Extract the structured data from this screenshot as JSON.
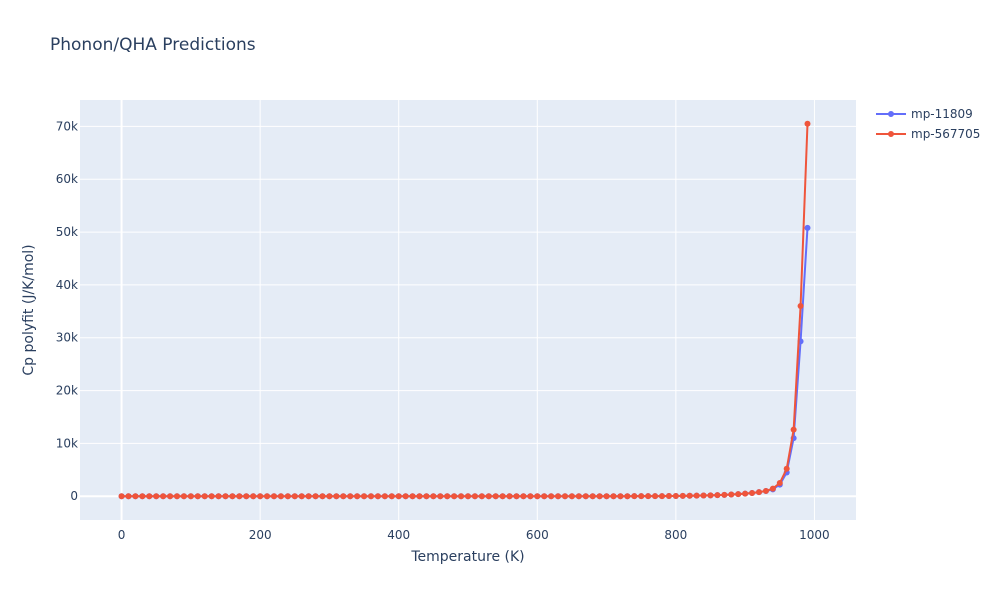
{
  "chart_data": {
    "type": "line",
    "title": "Phonon/QHA Predictions",
    "xlabel": "Temperature (K)",
    "ylabel": "Cp polyfit (J/K/mol)",
    "xlim": [
      -60,
      1060
    ],
    "ylim": [
      -4500,
      75000
    ],
    "x_ticks": [
      0,
      200,
      400,
      600,
      800,
      1000
    ],
    "x_tick_labels": [
      "0",
      "200",
      "400",
      "600",
      "800",
      "1000"
    ],
    "y_ticks": [
      0,
      10000,
      20000,
      30000,
      40000,
      50000,
      60000,
      70000
    ],
    "y_tick_labels": [
      "0",
      "10k",
      "20k",
      "30k",
      "40k",
      "50k",
      "60k",
      "70k"
    ],
    "grid": true,
    "legend": "right",
    "x": [
      0,
      10,
      20,
      30,
      40,
      50,
      60,
      70,
      80,
      90,
      100,
      110,
      120,
      130,
      140,
      150,
      160,
      170,
      180,
      190,
      200,
      210,
      220,
      230,
      240,
      250,
      260,
      270,
      280,
      290,
      300,
      310,
      320,
      330,
      340,
      350,
      360,
      370,
      380,
      390,
      400,
      410,
      420,
      430,
      440,
      450,
      460,
      470,
      480,
      490,
      500,
      510,
      520,
      530,
      540,
      550,
      560,
      570,
      580,
      590,
      600,
      610,
      620,
      630,
      640,
      650,
      660,
      670,
      680,
      690,
      700,
      710,
      720,
      730,
      740,
      750,
      760,
      770,
      780,
      790,
      800,
      810,
      820,
      830,
      840,
      850,
      860,
      870,
      880,
      890,
      900,
      910,
      920,
      930,
      940,
      950,
      960,
      970,
      980,
      990
    ],
    "series": [
      {
        "name": "mp-11809",
        "color": "#636efa",
        "values": [
          0,
          0,
          0,
          0,
          0,
          0,
          0,
          0,
          0,
          0,
          0,
          0,
          0,
          0,
          0,
          0,
          0,
          0,
          0,
          0,
          0,
          0,
          0,
          0,
          0,
          0,
          0,
          0,
          0,
          0,
          0,
          0,
          0,
          0,
          0,
          0,
          0,
          0,
          0,
          0,
          0,
          0,
          0,
          0,
          0,
          0,
          0,
          0,
          0,
          0,
          0,
          0,
          0,
          0,
          0,
          0,
          0,
          0,
          0,
          0,
          0,
          0,
          0,
          0,
          0,
          0,
          0,
          0,
          0,
          0,
          0,
          0,
          0,
          0,
          10,
          10,
          20,
          20,
          30,
          40,
          50,
          70,
          90,
          110,
          140,
          170,
          210,
          260,
          320,
          400,
          500,
          620,
          780,
          980,
          1300,
          2200,
          4500,
          11000,
          29300,
          50800
        ]
      },
      {
        "name": "mp-567705",
        "color": "#ef553b",
        "values": [
          0,
          0,
          0,
          0,
          0,
          0,
          0,
          0,
          0,
          0,
          0,
          0,
          0,
          0,
          0,
          0,
          0,
          0,
          0,
          0,
          0,
          0,
          0,
          0,
          0,
          0,
          0,
          0,
          0,
          0,
          0,
          0,
          0,
          0,
          0,
          0,
          0,
          0,
          0,
          0,
          0,
          0,
          0,
          0,
          0,
          0,
          0,
          0,
          0,
          0,
          0,
          0,
          0,
          0,
          0,
          0,
          0,
          0,
          0,
          0,
          0,
          0,
          0,
          0,
          0,
          0,
          0,
          0,
          0,
          0,
          0,
          0,
          0,
          0,
          10,
          10,
          20,
          20,
          30,
          40,
          50,
          70,
          90,
          110,
          140,
          170,
          210,
          260,
          320,
          400,
          500,
          620,
          780,
          1000,
          1450,
          2500,
          5200,
          12600,
          36000,
          70500
        ]
      }
    ]
  }
}
